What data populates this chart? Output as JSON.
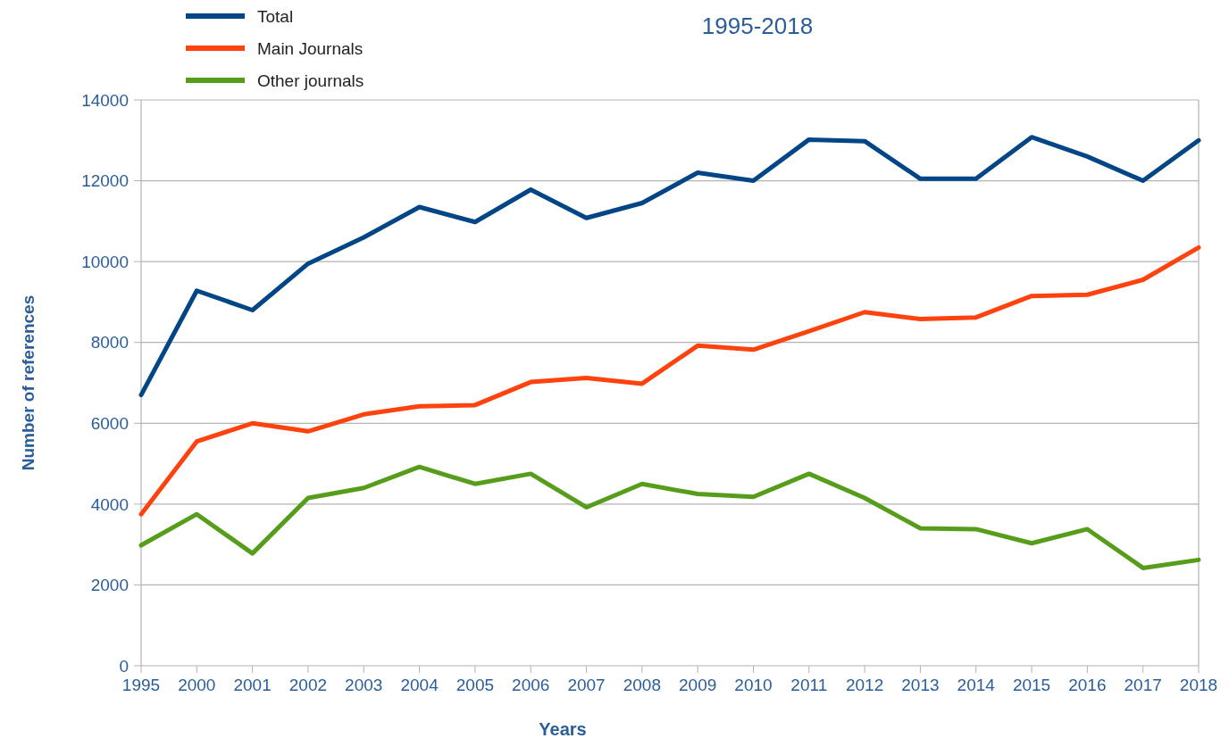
{
  "chart_data": {
    "type": "line",
    "title": "1995-2018",
    "xlabel": "Years",
    "ylabel": "Number of references",
    "categories": [
      "1995",
      "2000",
      "2001",
      "2002",
      "2003",
      "2004",
      "2005",
      "2006",
      "2007",
      "2008",
      "2009",
      "2010",
      "2011",
      "2012",
      "2013",
      "2014",
      "2015",
      "2016",
      "2017",
      "2018"
    ],
    "series": [
      {
        "name": "Total",
        "color": "#004586",
        "values": [
          6700,
          9280,
          8800,
          9950,
          10600,
          11350,
          10980,
          11780,
          11080,
          11450,
          12200,
          12000,
          13020,
          12980,
          12050,
          12050,
          13080,
          12600,
          12000,
          13000
        ]
      },
      {
        "name": "Main Journals",
        "color": "#ff420e",
        "values": [
          3750,
          5550,
          6000,
          5800,
          6220,
          6420,
          6450,
          7020,
          7120,
          6980,
          7920,
          7820,
          8280,
          8750,
          8580,
          8620,
          9150,
          9180,
          9550,
          10350
        ]
      },
      {
        "name": "Other journals",
        "color": "#579d1c",
        "values": [
          2980,
          3750,
          2780,
          4150,
          4400,
          4920,
          4500,
          4750,
          3920,
          4500,
          4250,
          4180,
          4750,
          4150,
          3400,
          3380,
          3030,
          3380,
          2420,
          2620
        ]
      }
    ],
    "ylim": [
      0,
      14000
    ],
    "yticks": [
      0,
      2000,
      4000,
      6000,
      8000,
      10000,
      12000,
      14000
    ],
    "grid": "y",
    "legend": "top left",
    "line_style": "solid",
    "marker": "none"
  }
}
